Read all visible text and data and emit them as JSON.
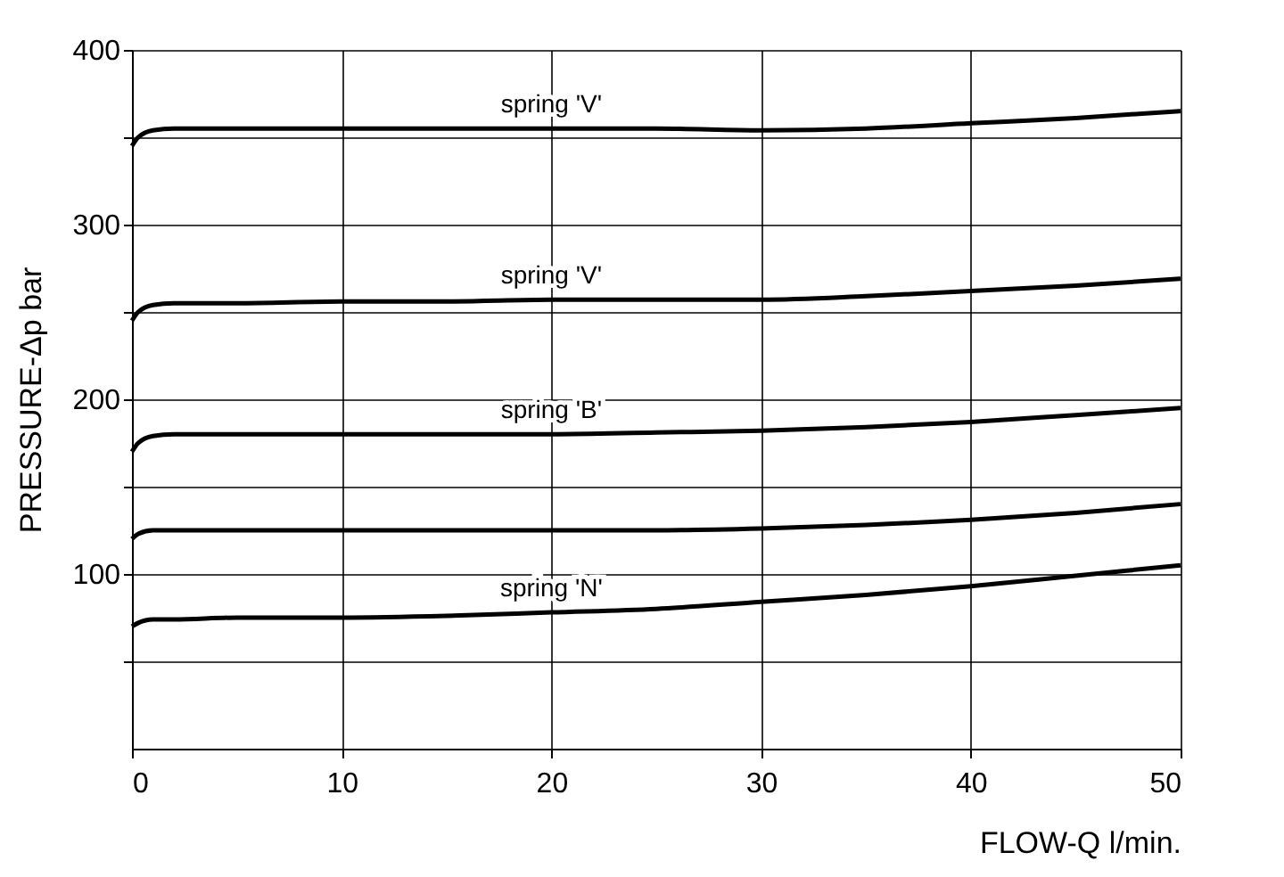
{
  "chart_data": {
    "type": "line",
    "xlabel": "FLOW-Q  l/min.",
    "ylabel": "PRESSURE-Δp  bar",
    "x": [
      0,
      0.3,
      1,
      2,
      5,
      10,
      15,
      20,
      25,
      30,
      35,
      40,
      45,
      50
    ],
    "series": [
      {
        "name": "spring 'V'",
        "color": "#000000",
        "values": [
          345,
          350,
          354,
          355,
          355,
          355,
          355,
          355,
          355,
          354,
          355,
          358,
          361,
          365
        ]
      },
      {
        "name": "spring 'V'",
        "color": "#000000",
        "values": [
          245,
          250,
          254,
          255,
          255,
          256,
          256,
          257,
          257,
          257,
          259,
          262,
          265,
          269
        ]
      },
      {
        "name": "spring 'B'",
        "color": "#000000",
        "values": [
          170,
          175,
          179,
          180,
          180,
          180,
          180,
          180,
          181,
          182,
          184,
          187,
          191,
          195
        ]
      },
      {
        "color": "#000000",
        "values": [
          120,
          123,
          125,
          125,
          125,
          125,
          125,
          125,
          125,
          126,
          128,
          131,
          135,
          140
        ]
      },
      {
        "name": "spring 'N'",
        "color": "#000000",
        "values": [
          70,
          72,
          74,
          74,
          75,
          75,
          76,
          78,
          80,
          84,
          88,
          93,
          99,
          105
        ]
      }
    ],
    "xlim": [
      0,
      50
    ],
    "xticks": [
      0,
      10,
      20,
      30,
      40,
      50
    ],
    "ylim": [
      0,
      400
    ],
    "yticks": [
      {
        "value": 50,
        "label": null
      },
      100,
      {
        "value": 150,
        "label": null
      },
      200,
      {
        "value": 250,
        "label": null
      },
      300,
      {
        "value": 350,
        "label": null
      },
      400
    ],
    "grid": true,
    "marker": "none",
    "line_style": "solid"
  }
}
